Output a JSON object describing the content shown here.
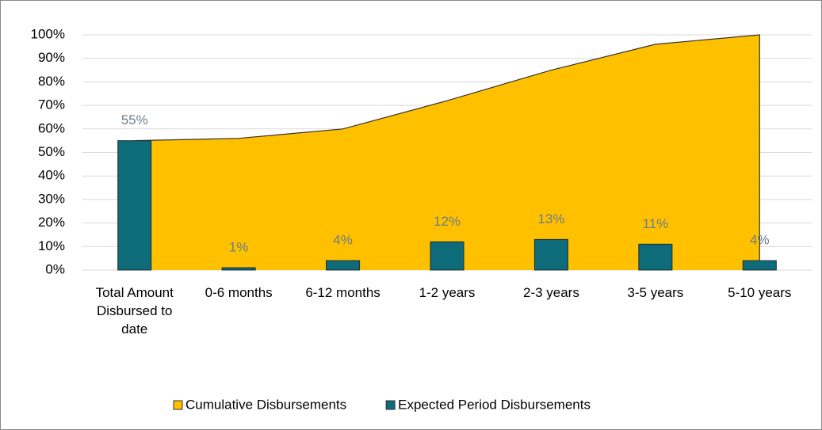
{
  "chart_data": {
    "type": "combo",
    "categories": [
      "Total Amount Disbursed to date",
      "0-6 months",
      "6-12 months",
      "1-2 years",
      "2-3 years",
      "3-5 years",
      "5-10 years"
    ],
    "series": [
      {
        "name": "Cumulative Disbursements",
        "type": "area",
        "color": "#ffc000",
        "values": [
          55,
          56,
          60,
          72,
          85,
          96,
          100
        ]
      },
      {
        "name": "Expected Period Disbursements",
        "type": "bar",
        "color": "#0e6b7a",
        "values": [
          55,
          1,
          4,
          12,
          13,
          11,
          4
        ],
        "value_labels": [
          "55%",
          "1%",
          "4%",
          "12%",
          "13%",
          "11%",
          "4%"
        ]
      }
    ],
    "ylim": [
      0,
      100
    ],
    "yticks": [
      {
        "value": 0,
        "label": "0%"
      },
      {
        "value": 10,
        "label": "10%"
      },
      {
        "value": 20,
        "label": "20%"
      },
      {
        "value": 30,
        "label": "30%"
      },
      {
        "value": 40,
        "label": "40%"
      },
      {
        "value": 50,
        "label": "50%"
      },
      {
        "value": 60,
        "label": "60%"
      },
      {
        "value": 70,
        "label": "70%"
      },
      {
        "value": 80,
        "label": "80%"
      },
      {
        "value": 90,
        "label": "90%"
      },
      {
        "value": 100,
        "label": "100%"
      }
    ],
    "grid": true,
    "legend": "bottom"
  }
}
